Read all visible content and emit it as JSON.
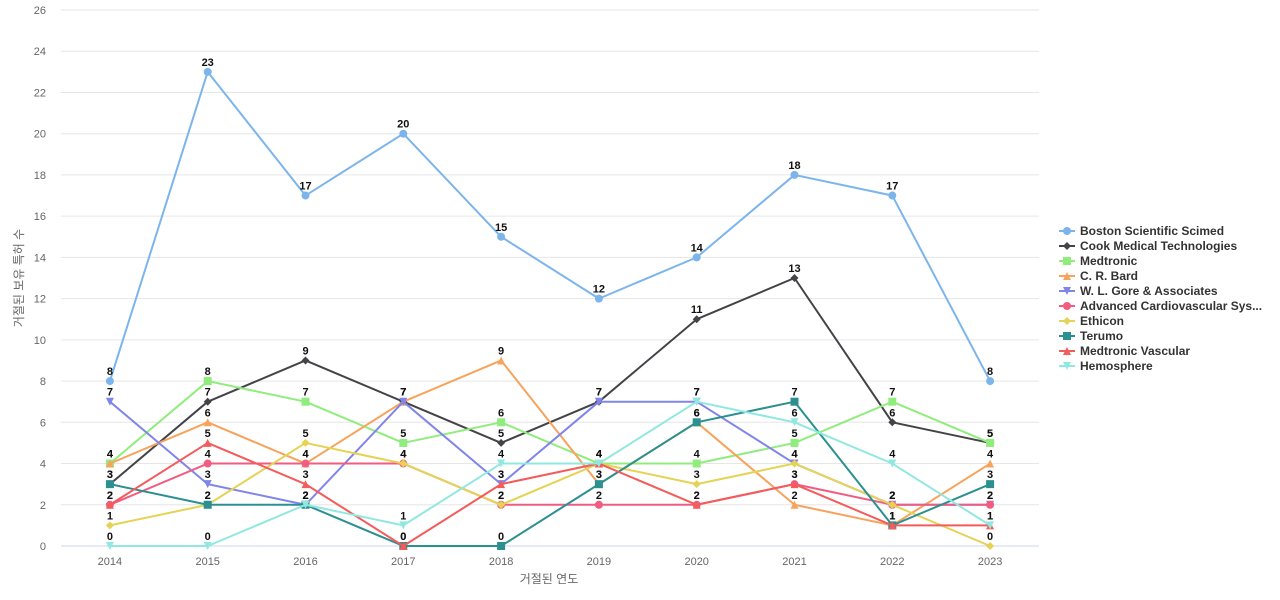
{
  "chart_data": {
    "type": "line",
    "title": "",
    "xlabel": "거절된 연도",
    "ylabel": "거절된 보유 특허 수",
    "categories": [
      "2014",
      "2015",
      "2016",
      "2017",
      "2018",
      "2019",
      "2020",
      "2021",
      "2022",
      "2023"
    ],
    "ylim": [
      0,
      26
    ],
    "yticks": [
      0,
      2,
      4,
      6,
      8,
      10,
      12,
      14,
      16,
      18,
      20,
      22,
      24,
      26
    ],
    "grid": true,
    "legend_position": "right",
    "series": [
      {
        "name": "Boston Scientific Scimed",
        "color": "#7cb5ec",
        "marker": "circle",
        "values": [
          8,
          23,
          17,
          20,
          15,
          12,
          14,
          18,
          17,
          8
        ]
      },
      {
        "name": "Cook Medical Technologies",
        "color": "#434348",
        "marker": "diamond",
        "values": [
          3,
          7,
          9,
          7,
          5,
          7,
          11,
          13,
          6,
          5
        ]
      },
      {
        "name": "Medtronic",
        "color": "#90ed7d",
        "marker": "square",
        "values": [
          4,
          8,
          7,
          5,
          6,
          4,
          4,
          5,
          7,
          5
        ]
      },
      {
        "name": "C. R. Bard",
        "color": "#f7a35c",
        "marker": "triangle",
        "values": [
          4,
          6,
          4,
          7,
          9,
          3,
          6,
          2,
          1,
          4
        ]
      },
      {
        "name": "W. L. Gore & Associates",
        "color": "#8085e9",
        "marker": "triangle-down",
        "values": [
          7,
          3,
          2,
          7,
          3,
          7,
          7,
          4,
          2,
          2
        ]
      },
      {
        "name": "Advanced Cardiovascular Sys...",
        "color": "#f15c80",
        "marker": "circle",
        "values": [
          2,
          4,
          4,
          4,
          2,
          2,
          2,
          3,
          2,
          2
        ]
      },
      {
        "name": "Ethicon",
        "color": "#e4d354",
        "marker": "diamond",
        "values": [
          1,
          2,
          5,
          4,
          2,
          4,
          3,
          4,
          2,
          0
        ]
      },
      {
        "name": "Terumo",
        "color": "#2b908f",
        "marker": "square",
        "values": [
          3,
          2,
          2,
          0,
          0,
          3,
          6,
          7,
          1,
          3
        ]
      },
      {
        "name": "Medtronic Vascular",
        "color": "#f45b5b",
        "marker": "triangle",
        "values": [
          2,
          5,
          3,
          0,
          3,
          4,
          2,
          3,
          1,
          1
        ]
      },
      {
        "name": "Hemosphere",
        "color": "#91e8e1",
        "marker": "triangle-down",
        "values": [
          0,
          0,
          2,
          1,
          4,
          4,
          7,
          6,
          4,
          1
        ]
      }
    ]
  }
}
